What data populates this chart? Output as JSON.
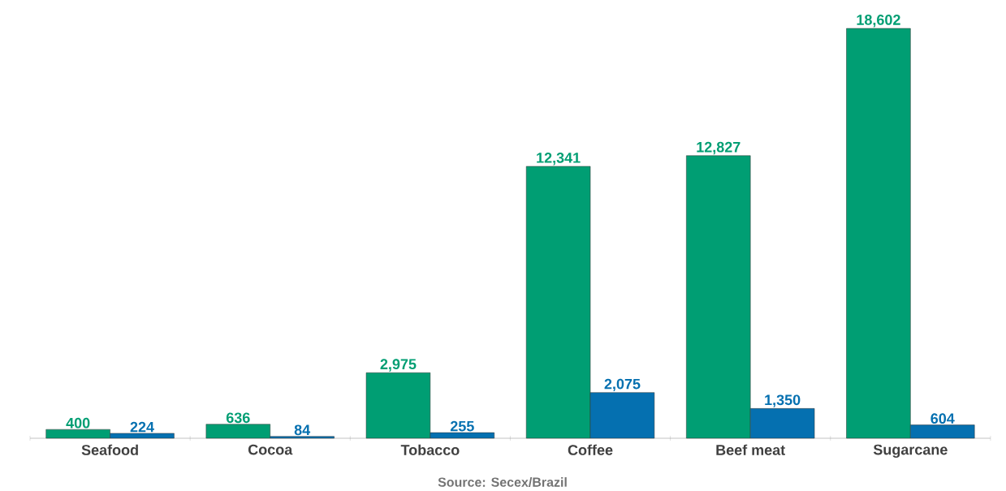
{
  "chart_data": {
    "type": "bar",
    "categories": [
      "Seafood",
      "Cocoa",
      "Tobacco",
      "Coffee",
      "Beef meat",
      "Sugarcane"
    ],
    "series": [
      {
        "color": "#009e73",
        "values": [
          400,
          636,
          2975,
          12341,
          12827,
          18602
        ],
        "value_labels": [
          "400",
          "636",
          "2,975",
          "12,341",
          "12,827",
          "18,602"
        ]
      },
      {
        "color": "#0570b0",
        "values": [
          224,
          84,
          255,
          2075,
          1350,
          604
        ],
        "value_labels": [
          "224",
          "84",
          "255",
          "2,075",
          "1,350",
          "604"
        ]
      }
    ],
    "annotations": [
      "Source: Secex/Brazil"
    ]
  }
}
